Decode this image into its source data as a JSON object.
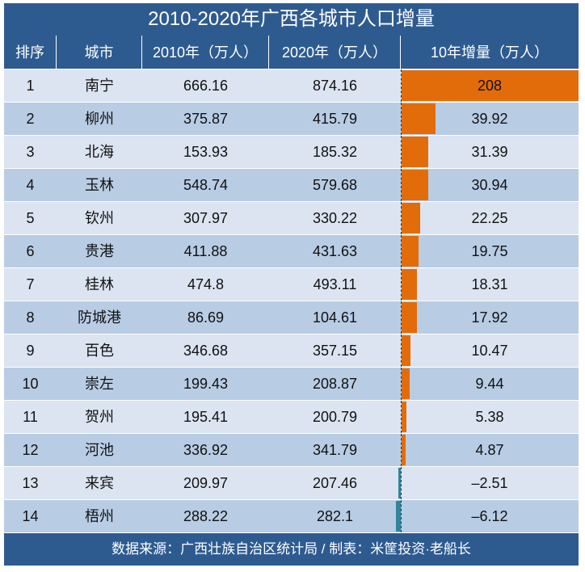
{
  "title": "2010-2020年广西各城市人口增量",
  "headers": [
    "排序",
    "城市",
    "2010年（万人）",
    "2020年（万人）",
    "10年增量（万人）"
  ],
  "colors": {
    "header": "#2e5b8f",
    "row_light": "#dbe4f0",
    "row_dark": "#b8cce4",
    "positive_bar": "#e36c0a",
    "negative_bar": "#31849b"
  },
  "chart_data": {
    "type": "table",
    "columns": [
      "排序",
      "城市",
      "2010年（万人）",
      "2020年（万人）",
      "10年增量（万人）"
    ],
    "rows": [
      [
        "1",
        "南宁",
        "666.16",
        "874.16",
        "208"
      ],
      [
        "2",
        "柳州",
        "375.87",
        "415.79",
        "39.92"
      ],
      [
        "3",
        "北海",
        "153.93",
        "185.32",
        "31.39"
      ],
      [
        "4",
        "玉林",
        "548.74",
        "579.68",
        "30.94"
      ],
      [
        "5",
        "钦州",
        "307.97",
        "330.22",
        "22.25"
      ],
      [
        "6",
        "贵港",
        "411.88",
        "431.63",
        "19.75"
      ],
      [
        "7",
        "桂林",
        "474.8",
        "493.11",
        "18.31"
      ],
      [
        "8",
        "防城港",
        "86.69",
        "104.61",
        "17.92"
      ],
      [
        "9",
        "百色",
        "346.68",
        "357.15",
        "10.47"
      ],
      [
        "10",
        "崇左",
        "199.43",
        "208.87",
        "9.44"
      ],
      [
        "11",
        "贺州",
        "195.41",
        "200.79",
        "5.38"
      ],
      [
        "12",
        "河池",
        "336.92",
        "341.79",
        "4.87"
      ],
      [
        "13",
        "来宾",
        "209.97",
        "207.46",
        "-2.51"
      ],
      [
        "14",
        "梧州",
        "288.22",
        "282.1",
        "-6.12"
      ]
    ],
    "data_bars": {
      "column": "10年增量（万人）",
      "max": 208
    }
  },
  "footer": "数据来源：广西壮族自治区统计局 / 制表：米筐投资·老船长"
}
